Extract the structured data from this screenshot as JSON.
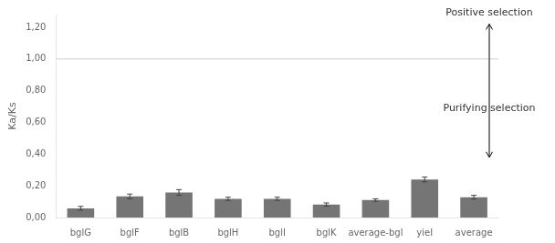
{
  "chart_data": {
    "type": "bar",
    "categories": [
      "bglG",
      "bglF",
      "bglB",
      "bglH",
      "bglI",
      "bglK",
      "average-bgl",
      "yieI",
      "average"
    ],
    "values": [
      0.058,
      0.133,
      0.158,
      0.118,
      0.118,
      0.082,
      0.11,
      0.24,
      0.128
    ],
    "errors": [
      0.012,
      0.015,
      0.018,
      0.01,
      0.01,
      0.01,
      0.008,
      0.015,
      0.012
    ],
    "color": "#757575",
    "ylabel": "Ka/Ks",
    "ylim": [
      0,
      1.28
    ],
    "yticks": [
      {
        "value": 0.0,
        "label": "0,00"
      },
      {
        "value": 0.2,
        "label": "0,20"
      },
      {
        "value": 0.4,
        "label": "0,40"
      },
      {
        "value": 0.6,
        "label": "0,60"
      },
      {
        "value": 0.8,
        "label": "0,80"
      },
      {
        "value": 1.0,
        "label": "1,00"
      },
      {
        "value": 1.2,
        "label": "1,20"
      }
    ],
    "grid": false,
    "reference_line": 1.0,
    "arrows": [
      {
        "from": 1.0,
        "to": 1.22
      },
      {
        "from": 1.0,
        "to": 0.38
      }
    ],
    "annotations": [
      {
        "text": "Positive selection",
        "y": 1.26
      },
      {
        "text": "Purifying selection",
        "y": 0.69
      }
    ]
  }
}
